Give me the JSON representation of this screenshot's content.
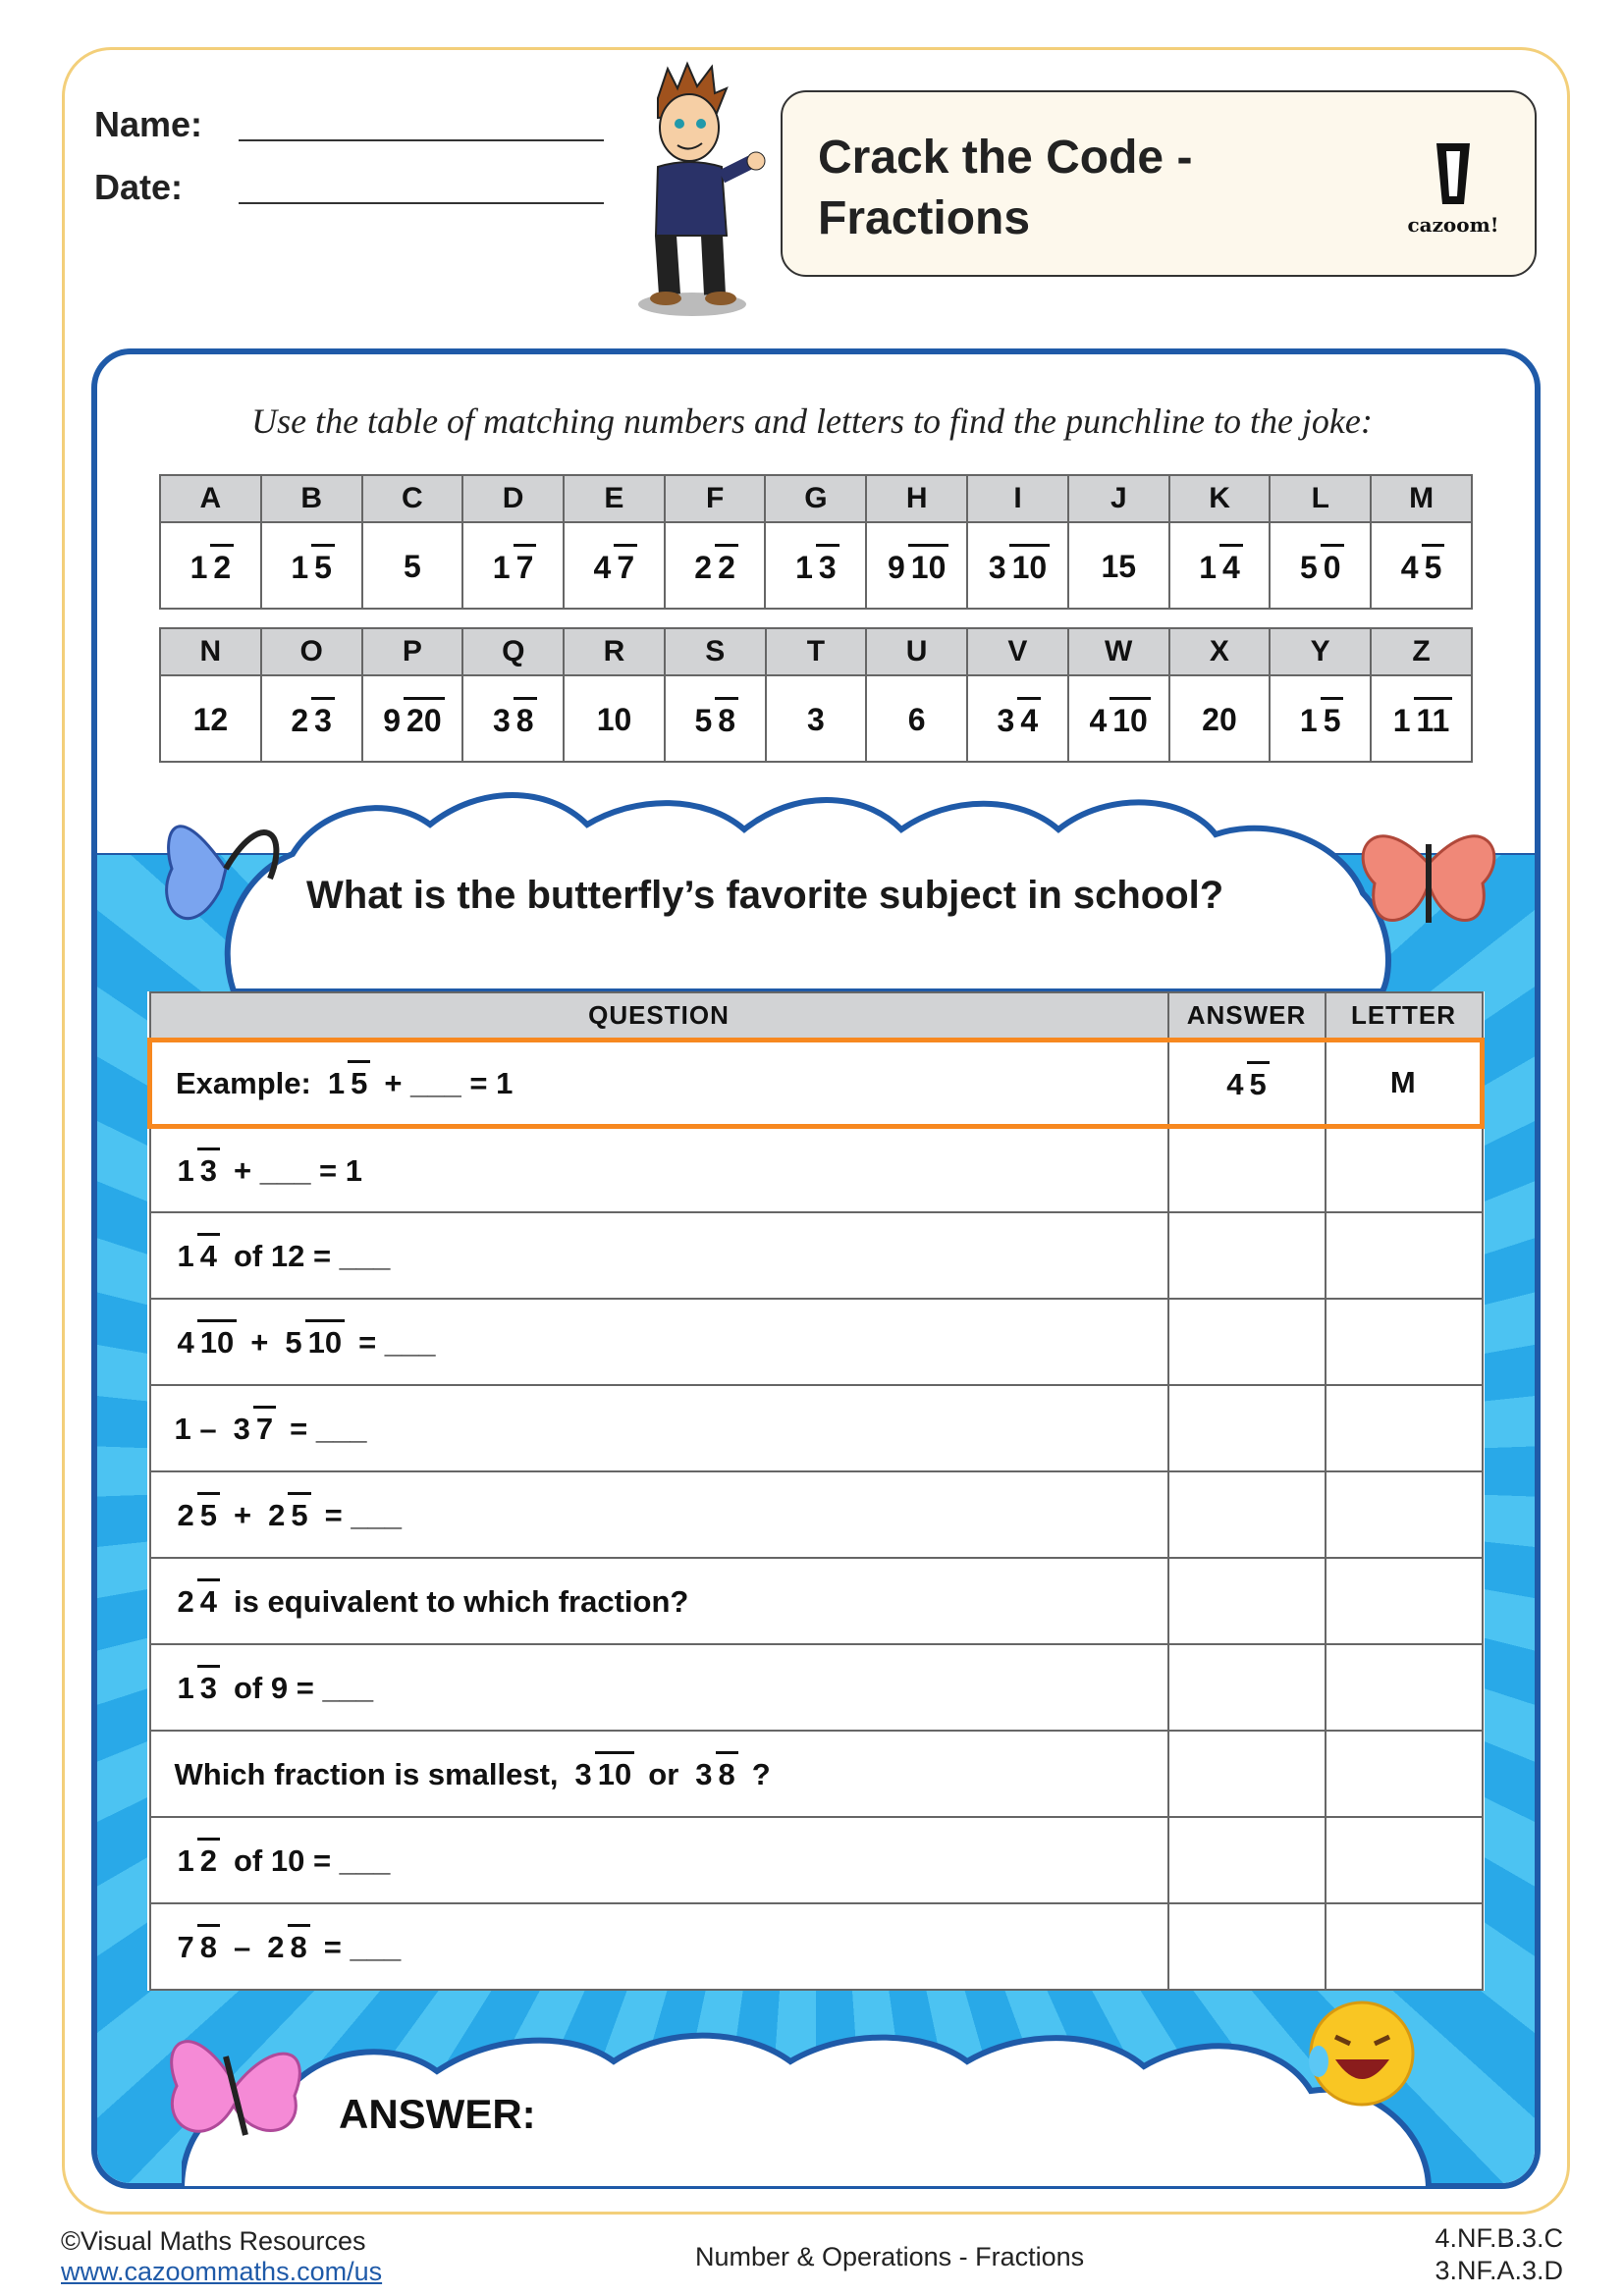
{
  "header": {
    "name_label": "Name:",
    "date_label": "Date:",
    "title_line1": "Crack the Code -",
    "title_line2": "Fractions",
    "logo_text": "cazoom!"
  },
  "instruction": "Use the table of matching numbers and letters to find the punchline to the joke:",
  "code_tables": [
    {
      "letters": [
        "A",
        "B",
        "C",
        "D",
        "E",
        "F",
        "G",
        "H",
        "I",
        "J",
        "K",
        "L",
        "M"
      ],
      "values": [
        {
          "n": "1",
          "d": "2"
        },
        {
          "n": "1",
          "d": "5"
        },
        {
          "v": "5"
        },
        {
          "n": "1",
          "d": "7"
        },
        {
          "n": "4",
          "d": "7"
        },
        {
          "n": "2",
          "d": "2"
        },
        {
          "n": "1",
          "d": "3"
        },
        {
          "n": "9",
          "d": "10"
        },
        {
          "n": "3",
          "d": "10"
        },
        {
          "v": "15"
        },
        {
          "n": "1",
          "d": "4"
        },
        {
          "n": "5",
          "d": "0"
        },
        {
          "n": "4",
          "d": "5"
        }
      ]
    },
    {
      "letters": [
        "N",
        "O",
        "P",
        "Q",
        "R",
        "S",
        "T",
        "U",
        "V",
        "W",
        "X",
        "Y",
        "Z"
      ],
      "values": [
        {
          "v": "12"
        },
        {
          "n": "2",
          "d": "3"
        },
        {
          "n": "9",
          "d": "20"
        },
        {
          "n": "3",
          "d": "8"
        },
        {
          "v": "10"
        },
        {
          "n": "5",
          "d": "8"
        },
        {
          "v": "3"
        },
        {
          "v": "6"
        },
        {
          "n": "3",
          "d": "4"
        },
        {
          "n": "4",
          "d": "10"
        },
        {
          "v": "20"
        },
        {
          "n": "1",
          "d": "5"
        },
        {
          "n": "1",
          "d": "11"
        }
      ]
    }
  ],
  "joke_question": "What is the butterfly’s favorite subject in school?",
  "question_table": {
    "headers": [
      "QUESTION",
      "ANSWER",
      "LETTER"
    ],
    "example": {
      "parts": [
        {
          "t": "Example:"
        },
        {
          "n": "1",
          "d": "5"
        },
        {
          "t": "+ ___ = 1"
        }
      ],
      "answer": {
        "n": "4",
        "d": "5"
      },
      "letter": "M"
    },
    "rows": [
      [
        {
          "n": "1",
          "d": "3"
        },
        {
          "t": "+ ___ = 1"
        }
      ],
      [
        {
          "n": "1",
          "d": "4"
        },
        {
          "t": "of  12 = ___"
        }
      ],
      [
        {
          "n": "4",
          "d": "10"
        },
        {
          "t": "+"
        },
        {
          "n": "5",
          "d": "10"
        },
        {
          "t": "= ___"
        }
      ],
      [
        {
          "t": "1 –"
        },
        {
          "n": "3",
          "d": "7"
        },
        {
          "t": "= ___"
        }
      ],
      [
        {
          "n": "2",
          "d": "5"
        },
        {
          "t": "+"
        },
        {
          "n": "2",
          "d": "5"
        },
        {
          "t": "= ___"
        }
      ],
      [
        {
          "n": "2",
          "d": "4"
        },
        {
          "t": "is equivalent to which fraction?"
        }
      ],
      [
        {
          "n": "1",
          "d": "3"
        },
        {
          "t": "of 9 = ___"
        }
      ],
      [
        {
          "t": "Which fraction is smallest,"
        },
        {
          "n": "3",
          "d": "10"
        },
        {
          "t": "or"
        },
        {
          "n": "3",
          "d": "8"
        },
        {
          "t": "?"
        }
      ],
      [
        {
          "n": "1",
          "d": "2"
        },
        {
          "t": "of 10 = ___"
        }
      ],
      [
        {
          "n": "7",
          "d": "8"
        },
        {
          "t": "–"
        },
        {
          "n": "2",
          "d": "8"
        },
        {
          "t": "= ___"
        }
      ]
    ]
  },
  "answer_label": "ANSWER:",
  "footer": {
    "copyright": "©Visual Maths Resources",
    "url": "www.cazoommaths.com/us",
    "topic": "Number & Operations - Fractions",
    "standard1": "4.NF.B.3.C",
    "standard2": "3.NF.A.3.D"
  },
  "colors": {
    "border": "#f3cf7a",
    "frame": "#1f5aa8",
    "highlight": "#f7881f",
    "header_gray": "#d2d3d5",
    "link": "#1f5aa8"
  }
}
